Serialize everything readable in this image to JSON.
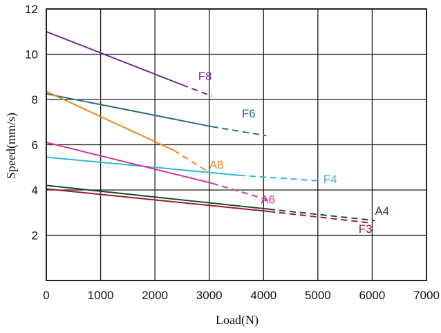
{
  "chart_data": {
    "type": "line",
    "title": "",
    "xlabel": "Load(N)",
    "ylabel": "Speed(mm/s)",
    "xlim": [
      0,
      7000
    ],
    "ylim": [
      0,
      12
    ],
    "xticks": [
      "0",
      "1000",
      "2000",
      "3000",
      "4000",
      "5000",
      "6000",
      "7000"
    ],
    "yticks": [
      "2",
      "4",
      "6",
      "8",
      "10",
      "12"
    ],
    "grid": true,
    "series": [
      {
        "name": "F8",
        "color": "#6a2c91",
        "solid": [
          [
            0,
            11.0
          ],
          [
            2500,
            8.65
          ]
        ],
        "dashed": [
          [
            2500,
            8.65
          ],
          [
            3050,
            8.15
          ]
        ]
      },
      {
        "name": "F6",
        "color": "#2a6f7e",
        "solid": [
          [
            0,
            8.25
          ],
          [
            3050,
            6.8
          ]
        ],
        "dashed": [
          [
            3050,
            6.8
          ],
          [
            4050,
            6.4
          ]
        ]
      },
      {
        "name": "A8",
        "color": "#e8891a",
        "solid": [
          [
            0,
            8.35
          ],
          [
            2350,
            5.75
          ]
        ],
        "dashed": [
          [
            2350,
            5.75
          ],
          [
            2950,
            4.85
          ]
        ]
      },
      {
        "name": "F4",
        "color": "#36b6cf",
        "solid": [
          [
            0,
            5.45
          ],
          [
            3550,
            4.65
          ]
        ],
        "dashed": [
          [
            3550,
            4.65
          ],
          [
            5050,
            4.4
          ]
        ]
      },
      {
        "name": "A6",
        "color": "#d2348f",
        "solid": [
          [
            0,
            6.1
          ],
          [
            3050,
            4.3
          ]
        ],
        "dashed": [
          [
            3050,
            4.3
          ],
          [
            4100,
            3.55
          ]
        ]
      },
      {
        "name": "A4",
        "color": "#1f4a2f",
        "solid": [
          [
            0,
            4.2
          ],
          [
            4100,
            3.15
          ]
        ],
        "dashed": [
          [
            4100,
            3.15
          ],
          [
            6050,
            2.65
          ]
        ]
      },
      {
        "name": "F3",
        "color": "#9b1b2e",
        "solid": [
          [
            0,
            4.05
          ],
          [
            4100,
            3.05
          ]
        ],
        "dashed": [
          [
            4100,
            3.05
          ],
          [
            5950,
            2.55
          ]
        ]
      }
    ]
  }
}
